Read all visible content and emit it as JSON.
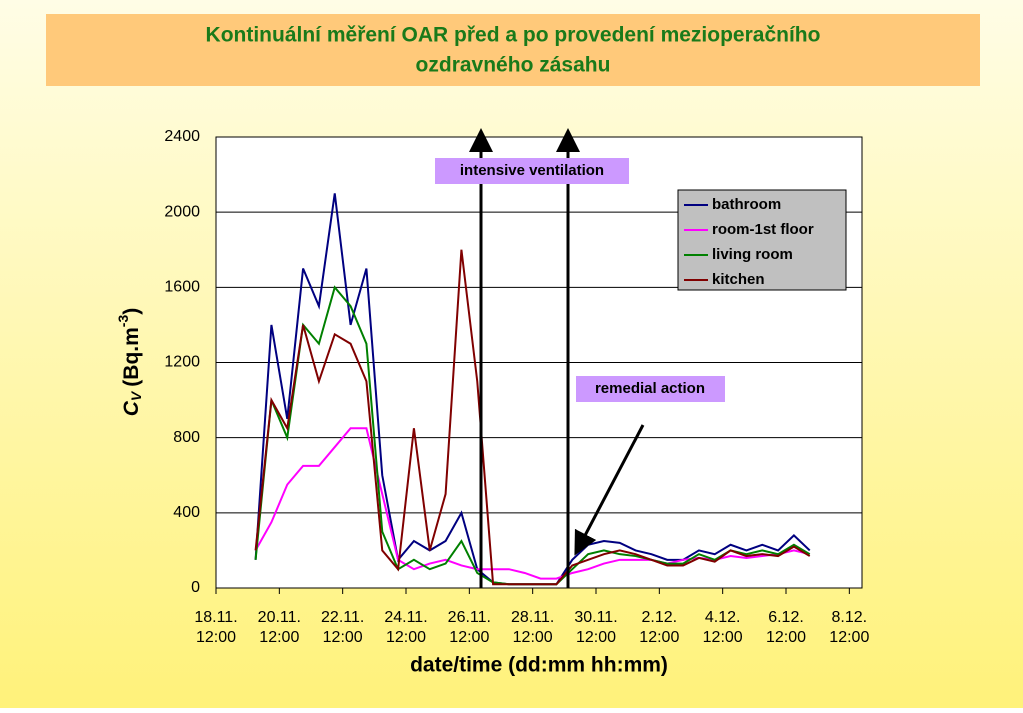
{
  "title": [
    "Kontinuální měření OAR před a po provedení mezioperačního",
    "ozdravného zásahu"
  ],
  "chart_data": {
    "type": "line",
    "x_label": "date/time (dd:mm hh:mm)",
    "y_label": {
      "symbol": "C",
      "sub": "V",
      "unit": "(Bq.m",
      "sup": "-3",
      "close": ")"
    },
    "annotations": [
      "intensive ventilation",
      "remedial action"
    ],
    "x": [
      1.25,
      1.75,
      2.25,
      2.75,
      3.25,
      3.75,
      4.25,
      4.75,
      5.25,
      5.75,
      6.25,
      6.75,
      7.25,
      7.75,
      8.25,
      8.75,
      9.25,
      9.75,
      10.25,
      10.75,
      11.25,
      11.75,
      12.25,
      12.75,
      13.25,
      13.75,
      14.25,
      14.75,
      15.25,
      15.75,
      16.25,
      16.75,
      17.25,
      17.75,
      18.25,
      18.75
    ],
    "series": [
      {
        "name": "bathroom",
        "color": "#000080",
        "values": [
          150,
          1400,
          900,
          1700,
          1500,
          2100,
          1400,
          1700,
          600,
          150,
          250,
          200,
          250,
          400,
          100,
          30,
          20,
          20,
          20,
          20,
          150,
          230,
          250,
          240,
          200,
          180,
          150,
          150,
          200,
          180,
          230,
          200,
          230,
          200,
          280,
          200
        ]
      },
      {
        "name": "room-1st floor",
        "color": "#ff00ff",
        "values": [
          200,
          350,
          550,
          650,
          650,
          750,
          850,
          850,
          500,
          150,
          100,
          130,
          150,
          120,
          100,
          100,
          100,
          80,
          50,
          50,
          80,
          100,
          130,
          150,
          150,
          150,
          130,
          150,
          160,
          150,
          170,
          160,
          170,
          180,
          200,
          180
        ]
      },
      {
        "name": "living room",
        "color": "#008000",
        "values": [
          150,
          1000,
          800,
          1400,
          1300,
          1600,
          1500,
          1300,
          300,
          100,
          150,
          100,
          130,
          250,
          80,
          30,
          20,
          20,
          20,
          20,
          100,
          180,
          200,
          180,
          170,
          150,
          130,
          130,
          180,
          150,
          200,
          180,
          200,
          180,
          230,
          180
        ]
      },
      {
        "name": "kitchen",
        "color": "#800000",
        "values": [
          200,
          1000,
          850,
          1400,
          1100,
          1350,
          1300,
          1100,
          200,
          100,
          850,
          200,
          500,
          1800,
          1100,
          20,
          20,
          20,
          20,
          20,
          120,
          150,
          180,
          200,
          180,
          150,
          120,
          120,
          160,
          140,
          200,
          170,
          180,
          170,
          220,
          170
        ]
      }
    ],
    "xlim": [
      0,
      20.4
    ],
    "xticks": [
      {
        "value": 0,
        "label": "18.11. 12:00"
      },
      {
        "value": 2,
        "label": "20.11. 12:00"
      },
      {
        "value": 4,
        "label": "22.11. 12:00"
      },
      {
        "value": 6,
        "label": "24.11. 12:00"
      },
      {
        "value": 8,
        "label": "26.11. 12:00"
      },
      {
        "value": 10,
        "label": "28.11. 12:00"
      },
      {
        "value": 12,
        "label": "30.11. 12:00"
      },
      {
        "value": 14,
        "label": "2.12. 12:00"
      },
      {
        "value": 16,
        "label": "4.12. 12:00"
      },
      {
        "value": 18,
        "label": "6.12. 12:00"
      },
      {
        "value": 20,
        "label": "8.12. 12:00"
      }
    ],
    "ylim": [
      0,
      2400
    ],
    "yticks": [
      0,
      400,
      800,
      1200,
      1600,
      2000,
      2400
    ],
    "grid": true,
    "legend": "upper right"
  }
}
